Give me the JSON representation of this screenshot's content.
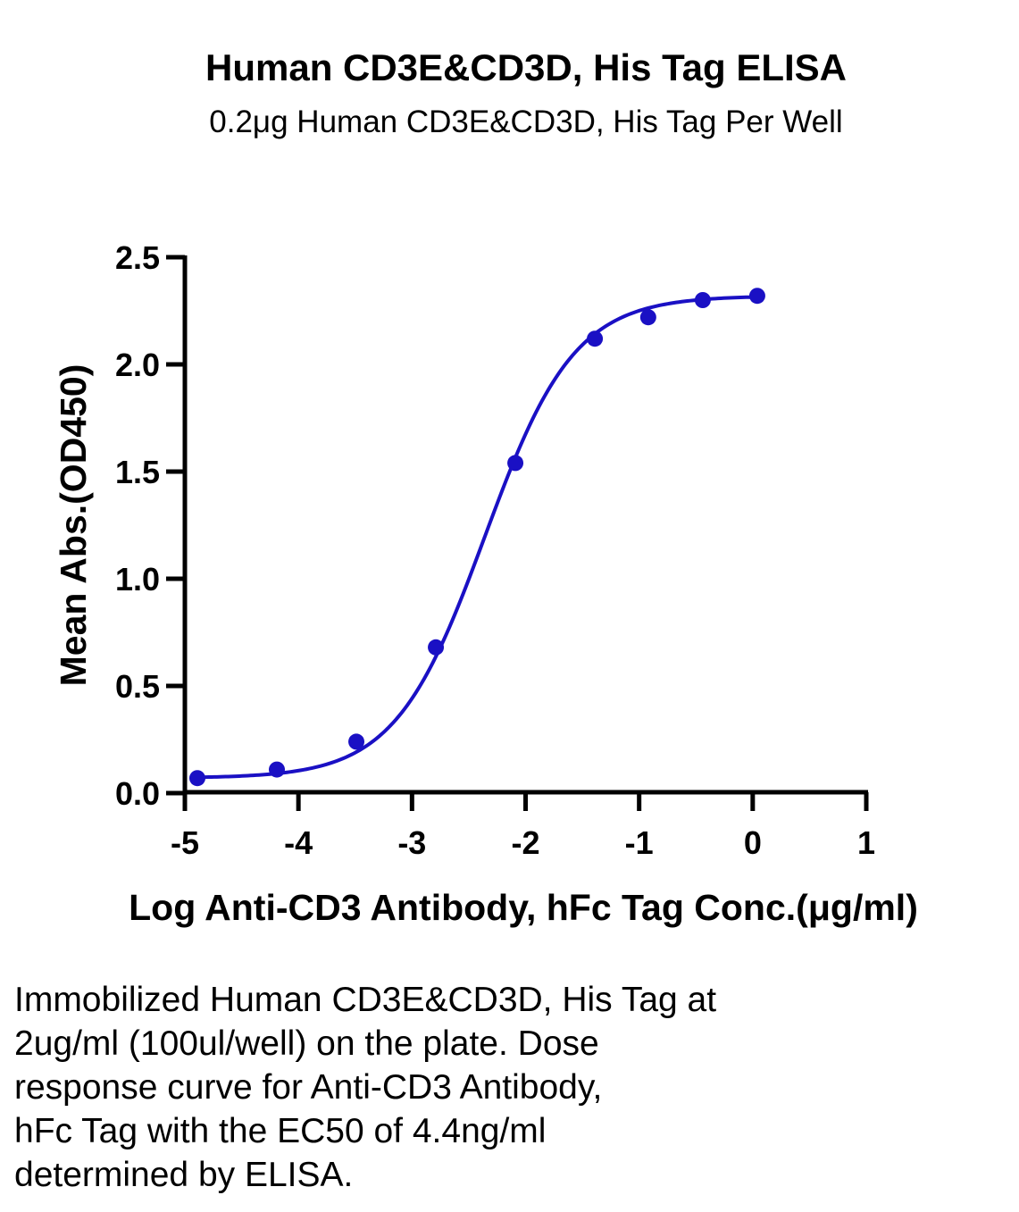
{
  "chart_data": {
    "type": "scatter",
    "title": "Human CD3E&CD3D, His Tag ELISA",
    "subtitle": "0.2μg Human CD3E&CD3D, His Tag Per Well",
    "xlabel": "Log Anti-CD3 Antibody, hFc Tag Conc.(μg/ml)",
    "ylabel": "Mean Abs.(OD450)",
    "xlim": [
      -5,
      1
    ],
    "ylim": [
      0,
      2.5
    ],
    "xticks": [
      "-5",
      "-4",
      "-3",
      "-2",
      "-1",
      "0",
      "1"
    ],
    "yticks": [
      "0.0",
      "0.5",
      "1.0",
      "1.5",
      "2.0",
      "2.5"
    ],
    "grid": false,
    "series": [
      {
        "x": [
          -4.89,
          -4.19,
          -3.49,
          -2.79,
          -2.09,
          -1.39,
          -0.92,
          -0.44,
          0.04
        ],
        "y": [
          0.07,
          0.11,
          0.24,
          0.68,
          1.54,
          2.12,
          2.22,
          2.3,
          2.32
        ],
        "color": "#1a10c4"
      }
    ],
    "fit": {
      "model": "4PL",
      "bottom": 0.07,
      "top": 2.32,
      "log_ec50": -2.36,
      "hill_slope": 1.1
    }
  },
  "caption": {
    "lines": [
      "Immobilized Human CD3E&CD3D, His Tag at",
      "2ug/ml (100ul/well) on the plate. Dose",
      "response curve for Anti-CD3 Antibody,",
      "hFc Tag with the EC50 of 4.4ng/ml",
      "determined by ELISA."
    ]
  }
}
